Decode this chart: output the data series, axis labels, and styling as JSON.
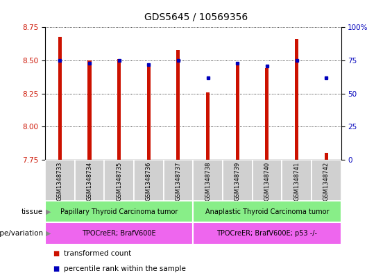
{
  "title": "GDS5645 / 10569356",
  "samples": [
    "GSM1348733",
    "GSM1348734",
    "GSM1348735",
    "GSM1348736",
    "GSM1348737",
    "GSM1348738",
    "GSM1348739",
    "GSM1348740",
    "GSM1348741",
    "GSM1348742"
  ],
  "transformed_count": [
    8.68,
    8.5,
    8.51,
    8.46,
    8.58,
    8.26,
    8.49,
    8.44,
    8.66,
    7.8
  ],
  "percentile_rank": [
    75,
    73,
    75,
    72,
    75,
    62,
    73,
    71,
    75,
    62
  ],
  "ylim": [
    7.75,
    8.75
  ],
  "y_ticks": [
    7.75,
    8.0,
    8.25,
    8.5,
    8.75
  ],
  "right_ylim": [
    0,
    100
  ],
  "right_yticks": [
    0,
    25,
    50,
    75,
    100
  ],
  "right_yticklabels": [
    "0",
    "25",
    "50",
    "75",
    "100%"
  ],
  "bar_color": "#cc1100",
  "dot_color": "#0000bb",
  "bar_bottom": 7.75,
  "tissue_labels": [
    {
      "text": "Papillary Thyroid Carcinoma tumor",
      "start": 0,
      "end": 4,
      "color": "#88ee88"
    },
    {
      "text": "Anaplastic Thyroid Carcinoma tumor",
      "start": 5,
      "end": 9,
      "color": "#88ee88"
    }
  ],
  "genotype_labels": [
    {
      "text": "TPOCreER; BrafV600E",
      "start": 0,
      "end": 4,
      "color": "#ee66ee"
    },
    {
      "text": "TPOCreER; BrafV600E; p53 -/-",
      "start": 5,
      "end": 9,
      "color": "#ee66ee"
    }
  ],
  "tissue_row_label": "tissue",
  "genotype_row_label": "genotype/variation",
  "legend_items": [
    {
      "color": "#cc1100",
      "label": "transformed count"
    },
    {
      "color": "#0000bb",
      "label": "percentile rank within the sample"
    }
  ],
  "left_axis_color": "#cc1100",
  "right_axis_color": "#0000bb",
  "title_fontsize": 10,
  "tick_fontsize": 7.5,
  "bar_width": 0.12,
  "sample_label_fontsize": 6,
  "annotation_fontsize": 7,
  "row_label_fontsize": 7.5
}
